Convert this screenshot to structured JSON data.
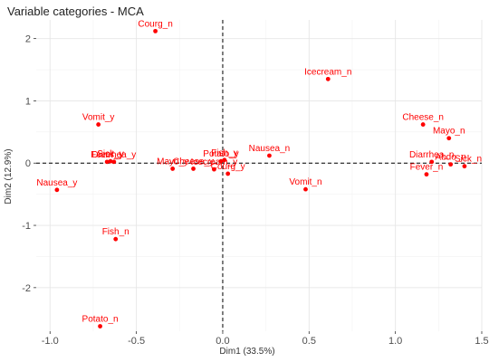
{
  "chart_data": {
    "type": "scatter",
    "title": "Variable categories - MCA",
    "xlabel": "Dim1 (33.5%)",
    "ylabel": "Dim2 (12.9%)",
    "xlim": [
      -1.08,
      1.5
    ],
    "ylim": [
      -2.7,
      2.3
    ],
    "x_ticks": [
      -1.0,
      -0.5,
      0.0,
      0.5,
      1.0,
      1.5
    ],
    "x_tick_labels": [
      "-1.0",
      "-0.5",
      "0.0",
      "0.5",
      "1.0",
      "1.5"
    ],
    "y_ticks": [
      -2,
      -1,
      0,
      1,
      2
    ],
    "y_tick_labels": [
      "-2",
      "-1",
      "0",
      "1",
      "2"
    ],
    "reference_lines": {
      "x": 0,
      "y": 0,
      "style": "dashed"
    },
    "grid": true,
    "point_color": "#ff0000",
    "label_color": "#ff0000",
    "points": [
      {
        "label": "Courg_n",
        "x": -0.39,
        "y": 2.12
      },
      {
        "label": "Icecream_n",
        "x": 0.61,
        "y": 1.35
      },
      {
        "label": "Vomit_y",
        "x": -0.72,
        "y": 0.62
      },
      {
        "label": "Cheese_n",
        "x": 1.16,
        "y": 0.62
      },
      {
        "label": "Mayo_n",
        "x": 1.31,
        "y": 0.4
      },
      {
        "label": "Fever_y",
        "x": -0.67,
        "y": 0.02
      },
      {
        "label": "Sick_y",
        "x": -0.65,
        "y": 0.03
      },
      {
        "label": "Diarrhea_y",
        "x": -0.63,
        "y": 0.02
      },
      {
        "label": "Potato_y",
        "x": -0.01,
        "y": 0.03
      },
      {
        "label": "Nausea_n",
        "x": 0.27,
        "y": 0.12
      },
      {
        "label": "Fish_y",
        "x": 0.01,
        "y": 0.05
      },
      {
        "label": "Mayo_y",
        "x": -0.29,
        "y": -0.09
      },
      {
        "label": "Cheese_y",
        "x": -0.17,
        "y": -0.09
      },
      {
        "label": "Icecream_y",
        "x": -0.05,
        "y": -0.1
      },
      {
        "label": "Courg_y",
        "x": 0.03,
        "y": -0.17
      },
      {
        "label": "Vomit_n",
        "x": 0.48,
        "y": -0.42
      },
      {
        "label": "Diarrhea_n",
        "x": 1.21,
        "y": 0.02
      },
      {
        "label": "Abdo_n",
        "x": 1.32,
        "y": -0.02
      },
      {
        "label": "Sick_n",
        "x": 1.4,
        "y": -0.05
      },
      {
        "label": "Fever_n",
        "x": 1.18,
        "y": -0.18
      },
      {
        "label": "Nausea_y",
        "x": -0.96,
        "y": -0.43
      },
      {
        "label": "Fish_n",
        "x": -0.62,
        "y": -1.22
      },
      {
        "label": "Potato_n",
        "x": -0.71,
        "y": -2.62
      }
    ]
  }
}
